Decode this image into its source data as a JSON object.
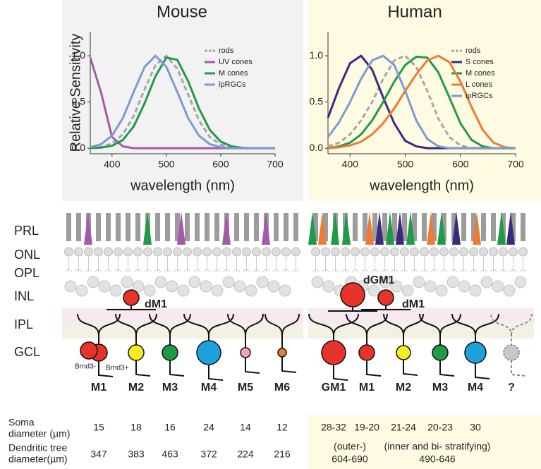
{
  "chart_data": [
    {
      "type": "line",
      "title": "Mouse",
      "xlabel": "wavelength (nm)",
      "ylabel": "Relative Sensitivity",
      "x": [
        360,
        380,
        400,
        420,
        440,
        460,
        480,
        500,
        520,
        540,
        560,
        580,
        600,
        620,
        640,
        660,
        680,
        700
      ],
      "xlim": [
        360,
        700
      ],
      "xticks": [
        400,
        500,
        600,
        700
      ],
      "ylim": [
        -0.06,
        1.26
      ],
      "yticks": [
        {
          "value": 0,
          "label": "0.0"
        },
        {
          "value": 0.5,
          "label": "0.5"
        },
        {
          "value": 1,
          "label": "1.0"
        }
      ],
      "series": [
        {
          "name": "rods",
          "color": "#a6a6a6",
          "dashed": true,
          "values": [
            0.003,
            0.013,
            0.05,
            0.15,
            0.35,
            0.64,
            0.9,
            1.0,
            0.86,
            0.58,
            0.3,
            0.12,
            0.039,
            0.01,
            0,
            0,
            0,
            0
          ]
        },
        {
          "name": "UV cones",
          "color": "#a55aa8",
          "values": [
            0.98,
            0.6,
            0.12,
            0.02,
            0,
            0,
            0,
            0,
            0,
            0,
            0,
            0,
            0,
            0,
            0,
            0,
            0,
            0
          ]
        },
        {
          "name": "M cones",
          "color": "#1f9a48",
          "values": [
            0.001,
            0.006,
            0.026,
            0.089,
            0.236,
            0.487,
            0.78,
            0.98,
            0.956,
            0.726,
            0.43,
            0.198,
            0.071,
            0.02,
            0.004,
            0,
            0,
            0
          ]
        },
        {
          "name": "ipRGCs",
          "color": "#7b9bd1",
          "values": [
            0.011,
            0.044,
            0.135,
            0.325,
            0.61,
            0.88,
            1.0,
            0.88,
            0.61,
            0.325,
            0.135,
            0.044,
            0.011,
            0,
            0,
            0,
            0,
            0
          ]
        }
      ]
    },
    {
      "type": "line",
      "title": "Human",
      "xlabel": "wavelength (nm)",
      "x": [
        360,
        380,
        400,
        420,
        440,
        460,
        480,
        500,
        520,
        540,
        560,
        580,
        600,
        620,
        640,
        660,
        680,
        700
      ],
      "xlim": [
        360,
        700
      ],
      "xticks": [
        400,
        500,
        600,
        700
      ],
      "ylim": [
        -0.06,
        1.26
      ],
      "yticks": [
        {
          "value": 0,
          "label": "0.0"
        },
        {
          "value": 0.5,
          "label": "0.5"
        },
        {
          "value": 1,
          "label": "1.0"
        }
      ],
      "series": [
        {
          "name": "rods",
          "color": "#a6a6a6",
          "dashed": true,
          "values": [
            0.02,
            0.06,
            0.15,
            0.3,
            0.5,
            0.75,
            0.95,
            1.0,
            0.88,
            0.62,
            0.32,
            0.12,
            0.03,
            0,
            0,
            0,
            0,
            0
          ]
        },
        {
          "name": "S cones",
          "color": "#3a2a7e",
          "values": [
            0.33,
            0.65,
            0.92,
            1.0,
            0.85,
            0.55,
            0.27,
            0.08,
            0.02,
            0,
            0,
            0,
            0,
            0,
            0,
            0,
            0,
            0
          ]
        },
        {
          "name": "M cones",
          "color": "#1f9a48",
          "values": [
            0,
            0.02,
            0.06,
            0.15,
            0.3,
            0.5,
            0.72,
            0.9,
            0.99,
            0.98,
            0.82,
            0.55,
            0.27,
            0.09,
            0.02,
            0,
            0,
            0
          ]
        },
        {
          "name": "L cones",
          "color": "#ee7b30",
          "values": [
            0,
            0.01,
            0.03,
            0.07,
            0.15,
            0.27,
            0.43,
            0.62,
            0.8,
            0.95,
            1.0,
            0.93,
            0.72,
            0.45,
            0.2,
            0.06,
            0.01,
            0
          ]
        },
        {
          "name": "ipRGCs",
          "color": "#7b9bd1",
          "values": [
            0.12,
            0.28,
            0.5,
            0.75,
            0.95,
            1.0,
            0.9,
            0.62,
            0.3,
            0.1,
            0.02,
            0,
            0,
            0,
            0,
            0,
            0,
            0
          ]
        }
      ]
    }
  ],
  "retina": {
    "layers": [
      "PRL",
      "ONL",
      "OPL",
      "INL",
      "IPL",
      "GCL"
    ],
    "mouse_cells": [
      {
        "label": "M1",
        "color": "#e8322c",
        "annotations": [
          "Brnd3-",
          "Brnd3+"
        ]
      },
      {
        "label": "M2",
        "color": "#f7ee1f"
      },
      {
        "label": "M3",
        "color": "#1f9a48"
      },
      {
        "label": "M4",
        "color": "#1ea0dc"
      },
      {
        "label": "M5",
        "color": "#f4a3b2"
      },
      {
        "label": "M6",
        "color": "#ee7b30"
      }
    ],
    "mouse_displaced": [
      {
        "label": "dM1",
        "color": "#e8322c"
      }
    ],
    "human_cells": [
      {
        "label": "GM1",
        "color": "#e8322c"
      },
      {
        "label": "M1",
        "color": "#e8322c"
      },
      {
        "label": "M2",
        "color": "#f7ee1f"
      },
      {
        "label": "M3",
        "color": "#1f9a48"
      },
      {
        "label": "M4",
        "color": "#1ea0dc"
      },
      {
        "label": "?",
        "color": "#c8c8c8"
      }
    ],
    "human_displaced": [
      {
        "label": "dGM1",
        "color": "#e8322c"
      },
      {
        "label": "dM1",
        "color": "#e8322c"
      }
    ]
  },
  "table": {
    "row_labels": [
      [
        "Soma",
        "diameter (µm)"
      ],
      [
        "Dendritic tree",
        "diameter(µm)"
      ]
    ],
    "mouse_soma": [
      15,
      18,
      16,
      24,
      14,
      12
    ],
    "mouse_dendritic": [
      347,
      383,
      463,
      372,
      224,
      216
    ],
    "human_soma": [
      "28-32",
      "19-20",
      "21-24",
      "20-23",
      "30"
    ],
    "human_dendritic": [
      [
        "(outer-)",
        "604-690"
      ],
      [
        "(inner and bi- stratifying)",
        "490-646"
      ]
    ]
  }
}
